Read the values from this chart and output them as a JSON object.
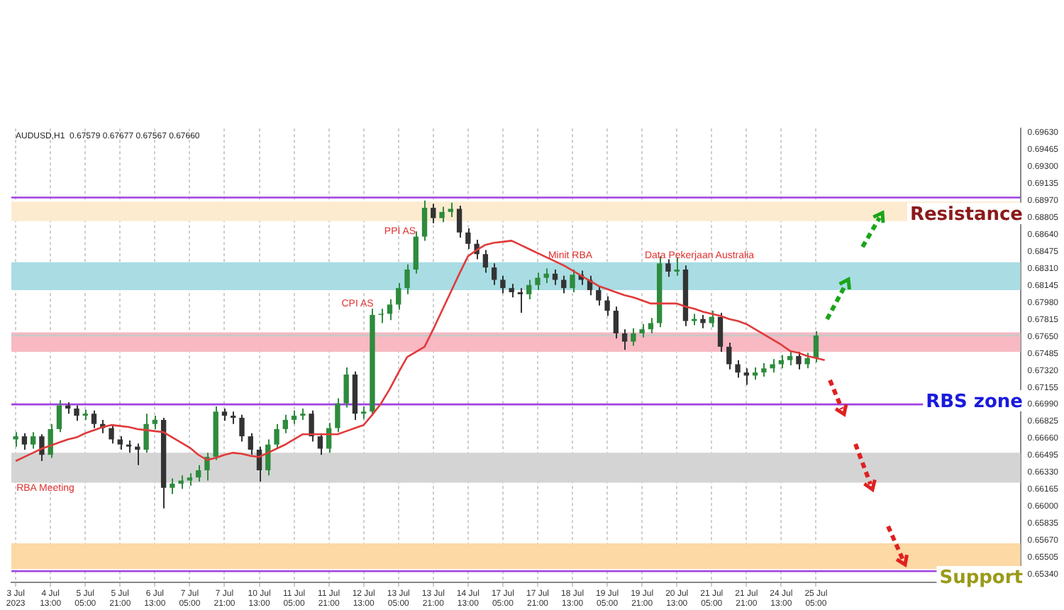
{
  "chart_data": {
    "type": "candlestick",
    "title": "AUDUSD,H1  0.67579 0.67677 0.67567 0.67660",
    "categories": [
      "3 Jul 2023",
      null,
      null,
      null,
      "4 Jul 13:00",
      null,
      null,
      null,
      "5 Jul 05:00",
      null,
      null,
      null,
      "5 Jul 21:00",
      null,
      null,
      null,
      "6 Jul 13:00",
      null,
      null,
      null,
      "7 Jul 05:00",
      null,
      null,
      null,
      "7 Jul 21:00",
      null,
      null,
      null,
      "10 Jul 13:00",
      null,
      null,
      null,
      "11 Jul 05:00",
      null,
      null,
      null,
      "11 Jul 21:00",
      null,
      null,
      null,
      "12 Jul 13:00",
      null,
      null,
      null,
      "13 Jul 05:00",
      null,
      null,
      null,
      "13 Jul 21:00",
      null,
      null,
      null,
      "14 Jul 13:00",
      null,
      null,
      null,
      "17 Jul 05:00",
      null,
      null,
      null,
      "17 Jul 21:00",
      null,
      null,
      null,
      "18 Jul 13:00",
      null,
      null,
      null,
      "19 Jul 05:00",
      null,
      null,
      null,
      "19 Jul 21:00",
      null,
      null,
      null,
      "20 Jul 13:00",
      null,
      null,
      null,
      "21 Jul 05:00",
      null,
      null,
      null,
      "21 Jul 21:00",
      null,
      null,
      null,
      "24 Jul 13:00",
      null,
      null,
      null,
      "25 Jul 05:00",
      null,
      null,
      null,
      null,
      null,
      null,
      null,
      null,
      null,
      null,
      null,
      null,
      null,
      null,
      null,
      null,
      null,
      null,
      null,
      null,
      null,
      null,
      null
    ],
    "ohlc": [
      [
        0.6665,
        0.6672,
        0.6658,
        0.6668
      ],
      [
        0.6668,
        0.6671,
        0.6655,
        0.666
      ],
      [
        0.666,
        0.6672,
        0.6656,
        0.6668
      ],
      [
        0.6668,
        0.667,
        0.6644,
        0.665
      ],
      [
        0.665,
        0.668,
        0.6647,
        0.6675
      ],
      [
        0.6675,
        0.6703,
        0.6672,
        0.6698
      ],
      [
        0.6698,
        0.6701,
        0.669,
        0.6695
      ],
      [
        0.6695,
        0.6698,
        0.6683,
        0.6688
      ],
      [
        0.6688,
        0.6694,
        0.6684,
        0.669
      ],
      [
        0.669,
        0.6693,
        0.6676,
        0.668
      ],
      [
        0.668,
        0.6684,
        0.6671,
        0.6676
      ],
      [
        0.6676,
        0.6679,
        0.6661,
        0.6665
      ],
      [
        0.6665,
        0.6668,
        0.6655,
        0.666
      ],
      [
        0.666,
        0.6664,
        0.6652,
        0.6658
      ],
      [
        0.6658,
        0.6661,
        0.664,
        0.6655
      ],
      [
        0.6655,
        0.669,
        0.6652,
        0.668
      ],
      [
        0.668,
        0.6688,
        0.6675,
        0.6684
      ],
      [
        0.6684,
        0.6686,
        0.6598,
        0.6618
      ],
      [
        0.6618,
        0.6627,
        0.6612,
        0.6622
      ],
      [
        0.6622,
        0.663,
        0.6617,
        0.6625
      ],
      [
        0.6625,
        0.6632,
        0.662,
        0.6628
      ],
      [
        0.6628,
        0.664,
        0.6624,
        0.6635
      ],
      [
        0.6635,
        0.6652,
        0.6625,
        0.6648
      ],
      [
        0.6648,
        0.6697,
        0.6645,
        0.6692
      ],
      [
        0.6692,
        0.6695,
        0.6683,
        0.6688
      ],
      [
        0.6688,
        0.6692,
        0.668,
        0.6686
      ],
      [
        0.6686,
        0.6689,
        0.6663,
        0.6668
      ],
      [
        0.6668,
        0.6671,
        0.665,
        0.6655
      ],
      [
        0.6655,
        0.6658,
        0.6624,
        0.6635
      ],
      [
        0.6635,
        0.6665,
        0.663,
        0.666
      ],
      [
        0.666,
        0.668,
        0.6656,
        0.6675
      ],
      [
        0.6675,
        0.6689,
        0.6671,
        0.6684
      ],
      [
        0.6684,
        0.6693,
        0.668,
        0.6688
      ],
      [
        0.6688,
        0.6695,
        0.6684,
        0.669
      ],
      [
        0.669,
        0.6693,
        0.6663,
        0.6668
      ],
      [
        0.6668,
        0.6671,
        0.665,
        0.6656
      ],
      [
        0.6656,
        0.6681,
        0.6652,
        0.6676
      ],
      [
        0.6676,
        0.6705,
        0.6672,
        0.67
      ],
      [
        0.67,
        0.6735,
        0.6696,
        0.6728
      ],
      [
        0.6728,
        0.6731,
        0.6684,
        0.669
      ],
      [
        0.669,
        0.6697,
        0.6685,
        0.6692
      ],
      [
        0.6692,
        0.6792,
        0.6688,
        0.6786
      ],
      [
        0.6786,
        0.6792,
        0.6778,
        0.6787
      ],
      [
        0.6787,
        0.6801,
        0.6781,
        0.6796
      ],
      [
        0.6796,
        0.6817,
        0.6791,
        0.6812
      ],
      [
        0.6812,
        0.6835,
        0.6806,
        0.683
      ],
      [
        0.683,
        0.6867,
        0.6826,
        0.6862
      ],
      [
        0.6862,
        0.6897,
        0.6858,
        0.689
      ],
      [
        0.689,
        0.6894,
        0.6875,
        0.688
      ],
      [
        0.688,
        0.6891,
        0.6876,
        0.6886
      ],
      [
        0.6886,
        0.6895,
        0.6881,
        0.6889
      ],
      [
        0.6889,
        0.6892,
        0.6861,
        0.6866
      ],
      [
        0.6866,
        0.687,
        0.685,
        0.6855
      ],
      [
        0.6855,
        0.6859,
        0.684,
        0.6845
      ],
      [
        0.6845,
        0.6849,
        0.6827,
        0.6832
      ],
      [
        0.6832,
        0.6836,
        0.6815,
        0.682
      ],
      [
        0.682,
        0.6824,
        0.6807,
        0.6812
      ],
      [
        0.6812,
        0.6816,
        0.6803,
        0.6808
      ],
      [
        0.6808,
        0.6812,
        0.6788,
        0.6806
      ],
      [
        0.6806,
        0.682,
        0.6801,
        0.6815
      ],
      [
        0.6815,
        0.6827,
        0.681,
        0.6822
      ],
      [
        0.6822,
        0.6831,
        0.6817,
        0.6826
      ],
      [
        0.6826,
        0.683,
        0.6815,
        0.682
      ],
      [
        0.682,
        0.6824,
        0.6807,
        0.6812
      ],
      [
        0.6812,
        0.683,
        0.6808,
        0.6825
      ],
      [
        0.6825,
        0.6829,
        0.6815,
        0.682
      ],
      [
        0.682,
        0.6824,
        0.6805,
        0.681
      ],
      [
        0.681,
        0.6814,
        0.6795,
        0.68
      ],
      [
        0.68,
        0.6804,
        0.6785,
        0.679
      ],
      [
        0.679,
        0.6794,
        0.6763,
        0.6768
      ],
      [
        0.6768,
        0.6772,
        0.6752,
        0.676
      ],
      [
        0.676,
        0.6773,
        0.6756,
        0.6768
      ],
      [
        0.6768,
        0.6777,
        0.6764,
        0.6772
      ],
      [
        0.6772,
        0.6783,
        0.6768,
        0.6778
      ],
      [
        0.6778,
        0.6843,
        0.6774,
        0.6836
      ],
      [
        0.6836,
        0.684,
        0.6823,
        0.6828
      ],
      [
        0.6828,
        0.6842,
        0.6824,
        0.683
      ],
      [
        0.683,
        0.6834,
        0.6775,
        0.678
      ],
      [
        0.678,
        0.6787,
        0.6776,
        0.6782
      ],
      [
        0.6782,
        0.6786,
        0.6773,
        0.6778
      ],
      [
        0.6778,
        0.679,
        0.6774,
        0.6784
      ],
      [
        0.6784,
        0.6788,
        0.675,
        0.6755
      ],
      [
        0.6755,
        0.6759,
        0.6733,
        0.6738
      ],
      [
        0.6738,
        0.6742,
        0.6725,
        0.673
      ],
      [
        0.673,
        0.6734,
        0.6718,
        0.6727
      ],
      [
        0.6727,
        0.6735,
        0.6723,
        0.673
      ],
      [
        0.673,
        0.6739,
        0.6726,
        0.6734
      ],
      [
        0.6734,
        0.6743,
        0.673,
        0.6738
      ],
      [
        0.6738,
        0.6747,
        0.6734,
        0.6742
      ],
      [
        0.6742,
        0.675,
        0.6737,
        0.6746
      ],
      [
        0.6746,
        0.675,
        0.6733,
        0.6738
      ],
      [
        0.6738,
        0.6749,
        0.6734,
        0.6744
      ],
      [
        0.6744,
        0.677,
        0.674,
        0.6766
      ],
      null,
      null,
      null,
      null,
      null,
      null,
      null,
      null,
      null,
      null,
      null,
      null,
      null,
      null,
      null,
      null,
      null,
      null,
      null,
      null,
      null,
      null,
      null
    ],
    "colors": [
      "#2e8b3d",
      "#333333",
      "#2e8b3d",
      "#333333",
      "#2e8b3d",
      "#2e8b3d",
      "#333333",
      "#333333",
      "#2e8b3d",
      "#333333",
      "#333333",
      "#333333",
      "#333333",
      "#333333",
      "#333333",
      "#2e8b3d",
      "#2e8b3d",
      "#333333",
      "#2e8b3d",
      "#2e8b3d",
      "#2e8b3d",
      "#2e8b3d",
      "#2e8b3d",
      "#2e8b3d",
      "#333333",
      "#333333",
      "#333333",
      "#333333",
      "#333333",
      "#2e8b3d",
      "#2e8b3d",
      "#2e8b3d",
      "#2e8b3d",
      "#2e8b3d",
      "#333333",
      "#333333",
      "#2e8b3d",
      "#2e8b3d",
      "#2e8b3d",
      "#333333",
      "#2e8b3d",
      "#2e8b3d",
      "#2e8b3d",
      "#2e8b3d",
      "#2e8b3d",
      "#2e8b3d",
      "#2e8b3d",
      "#2e8b3d",
      "#333333",
      "#2e8b3d",
      "#2e8b3d",
      "#333333",
      "#333333",
      "#333333",
      "#333333",
      "#333333",
      "#333333",
      "#333333",
      "#333333",
      "#2e8b3d",
      "#2e8b3d",
      "#2e8b3d",
      "#333333",
      "#333333",
      "#2e8b3d",
      "#333333",
      "#333333",
      "#333333",
      "#333333",
      "#333333",
      "#333333",
      "#2e8b3d",
      "#2e8b3d",
      "#2e8b3d",
      "#2e8b3d",
      "#333333",
      "#2e8b3d",
      "#333333",
      "#2e8b3d",
      "#333333",
      "#2e8b3d",
      "#333333",
      "#333333",
      "#333333",
      "#333333",
      "#2e8b3d",
      "#2e8b3d",
      "#2e8b3d",
      "#2e8b3d",
      "#2e8b3d",
      "#333333",
      "#2e8b3d",
      "#2e8b3d",
      null,
      null,
      null,
      null,
      null,
      null,
      null,
      null,
      null,
      null,
      null,
      null,
      null,
      null,
      null,
      null,
      null,
      null,
      null,
      null,
      null,
      null,
      null
    ],
    "series": [
      {
        "type": "line",
        "color": "#e03a3a",
        "marker": "none",
        "values": [
          0.6644,
          0.6648,
          0.6652,
          0.6656,
          0.6659,
          0.6662,
          0.6665,
          0.6667,
          0.6671,
          0.6674,
          0.6677,
          0.6679,
          0.6678,
          0.6677,
          0.6675,
          0.6674,
          0.6673,
          0.6672,
          0.6667,
          0.6662,
          0.6657,
          0.665,
          0.6645,
          0.6647,
          0.665,
          0.6652,
          0.6651,
          0.6649,
          0.6648,
          0.6652,
          0.6656,
          0.666,
          0.6665,
          0.667,
          0.667,
          0.667,
          0.667,
          0.667,
          0.6673,
          0.6676,
          0.6679,
          0.6689,
          0.67,
          0.6714,
          0.673,
          0.6745,
          0.675,
          0.6755,
          0.6772,
          0.679,
          0.6808,
          0.6826,
          0.6843,
          0.6849,
          0.6854,
          0.6856,
          0.6857,
          0.6858,
          0.6854,
          0.685,
          0.6846,
          0.6842,
          0.6838,
          0.6834,
          0.6829,
          0.6824,
          0.6819,
          0.6814,
          0.6811,
          0.6808,
          0.6805,
          0.6803,
          0.68,
          0.6797,
          0.6797,
          0.6797,
          0.6797,
          0.6794,
          0.6792,
          0.6789,
          0.6787,
          0.6785,
          0.6782,
          0.678,
          0.6777,
          0.6772,
          0.6767,
          0.6762,
          0.6757,
          0.6751,
          0.6749,
          0.6746,
          0.6744,
          0.6742,
          null,
          null,
          null,
          null,
          null,
          null,
          null,
          null,
          null,
          null,
          null,
          null,
          null,
          null,
          null,
          null,
          null,
          null,
          null,
          null,
          null,
          null
        ]
      }
    ],
    "ylim": [
      0.6526,
      0.6967
    ],
    "yticks": [
      {
        "value": 0.6534,
        "label": "0.65340"
      },
      0.65505,
      {
        "value": 0.6567,
        "label": "0.65670"
      },
      0.65835,
      {
        "value": 0.66,
        "label": "0.66000"
      },
      0.66165,
      {
        "value": 0.6633,
        "label": "0.66330"
      },
      0.66495,
      {
        "value": 0.6666,
        "label": "0.66660"
      },
      0.66825,
      {
        "value": 0.6699,
        "label": "0.66990"
      },
      0.67155,
      {
        "value": 0.6732,
        "label": "0.67320"
      },
      0.67485,
      {
        "value": 0.6765,
        "label": "0.67650"
      },
      0.67815,
      {
        "value": 0.6798,
        "label": "0.67980"
      },
      0.68145,
      {
        "value": 0.6831,
        "label": "0.68310"
      },
      0.68475,
      {
        "value": 0.6864,
        "label": "0.68640"
      },
      0.68805,
      {
        "value": 0.6897,
        "label": "0.68970"
      },
      0.69135,
      {
        "value": 0.693,
        "label": "0.69300"
      },
      0.69465,
      {
        "value": 0.6963,
        "label": "0.69630"
      }
    ],
    "grid": "x",
    "legend": false,
    "bands": [
      {
        "axis": "y",
        "from": 0.6877,
        "to": 0.6896,
        "color": "#fdebd0"
      },
      {
        "axis": "y",
        "from": 0.681,
        "to": 0.6837,
        "color": "#a9dce3"
      },
      {
        "axis": "y",
        "from": 0.675,
        "to": 0.6769,
        "color": "#f8b9c3"
      },
      {
        "axis": "y",
        "from": 0.6623,
        "to": 0.6652,
        "color": "#d4d4d4"
      },
      {
        "axis": "y",
        "from": 0.6539,
        "to": 0.6564,
        "color": "#fcd9a5"
      }
    ],
    "ref_lines": [
      {
        "axis": "y",
        "value": 0.69,
        "color": "#a040e0"
      },
      {
        "axis": "y",
        "value": 0.6699,
        "color": "#a040e0"
      },
      {
        "axis": "y",
        "value": 0.6537,
        "color": "#a040e0"
      },
      {
        "axis": "y",
        "value": 0.6766,
        "color": "#c8c8c8"
      }
    ],
    "annotations": [
      "PPI AS",
      "CPI AS",
      "Minit RBA",
      "Data Pekerjaan Australia",
      "RBA Meeting",
      "Resistance",
      "RBS zone",
      "Support"
    ]
  }
}
